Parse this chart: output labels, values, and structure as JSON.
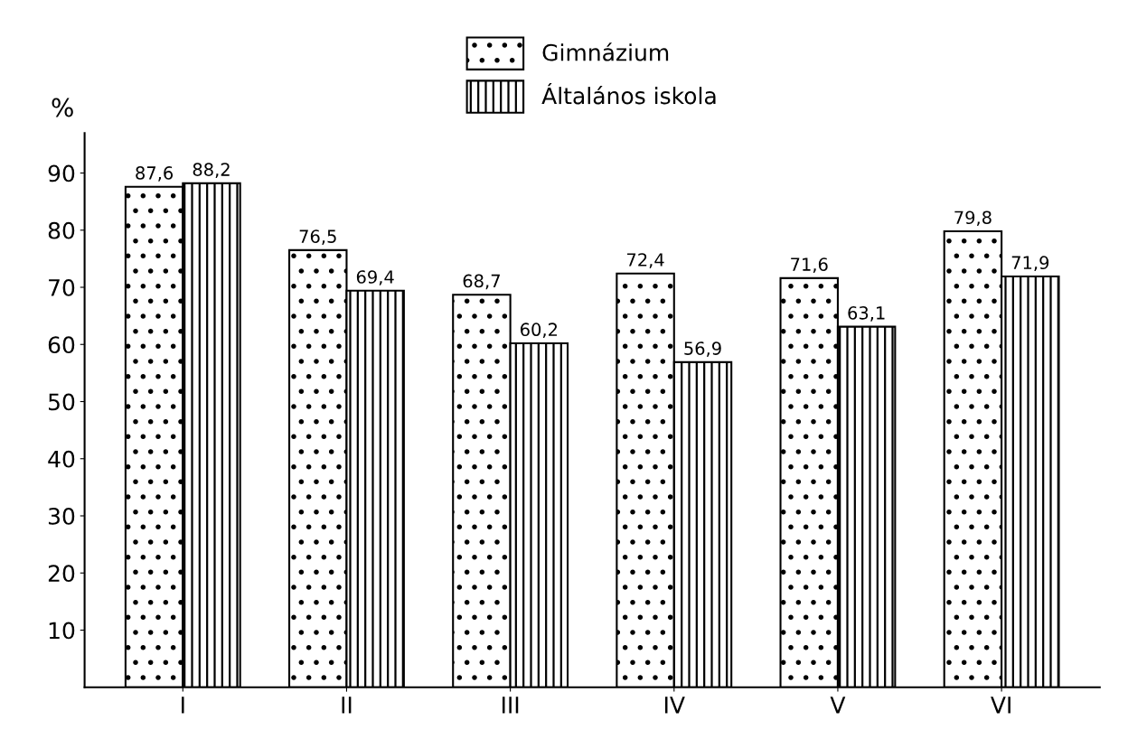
{
  "chart_data": {
    "type": "bar",
    "ylabel": "%",
    "categories": [
      "I",
      "II",
      "III",
      "IV",
      "V",
      "VI"
    ],
    "series": [
      {
        "name": "Gimnázium",
        "color": "#000000",
        "values": [
          87.6,
          76.5,
          68.7,
          72.4,
          71.6,
          79.8
        ],
        "value_labels": [
          "87,6",
          "76,5",
          "68,7",
          "72,4",
          "71,6",
          "79,8"
        ]
      },
      {
        "name": "Általános iskola",
        "color": "#000000",
        "values": [
          88.2,
          69.4,
          60.2,
          56.9,
          63.1,
          71.9
        ],
        "value_labels": [
          "88,2",
          "69,4",
          "60,2",
          "56,9",
          "63,1",
          "71,9"
        ]
      }
    ],
    "ylim": [
      0,
      97
    ],
    "yticks": [
      10,
      20,
      30,
      40,
      50,
      60,
      70,
      80,
      90
    ],
    "grid": false,
    "legend": "top"
  }
}
